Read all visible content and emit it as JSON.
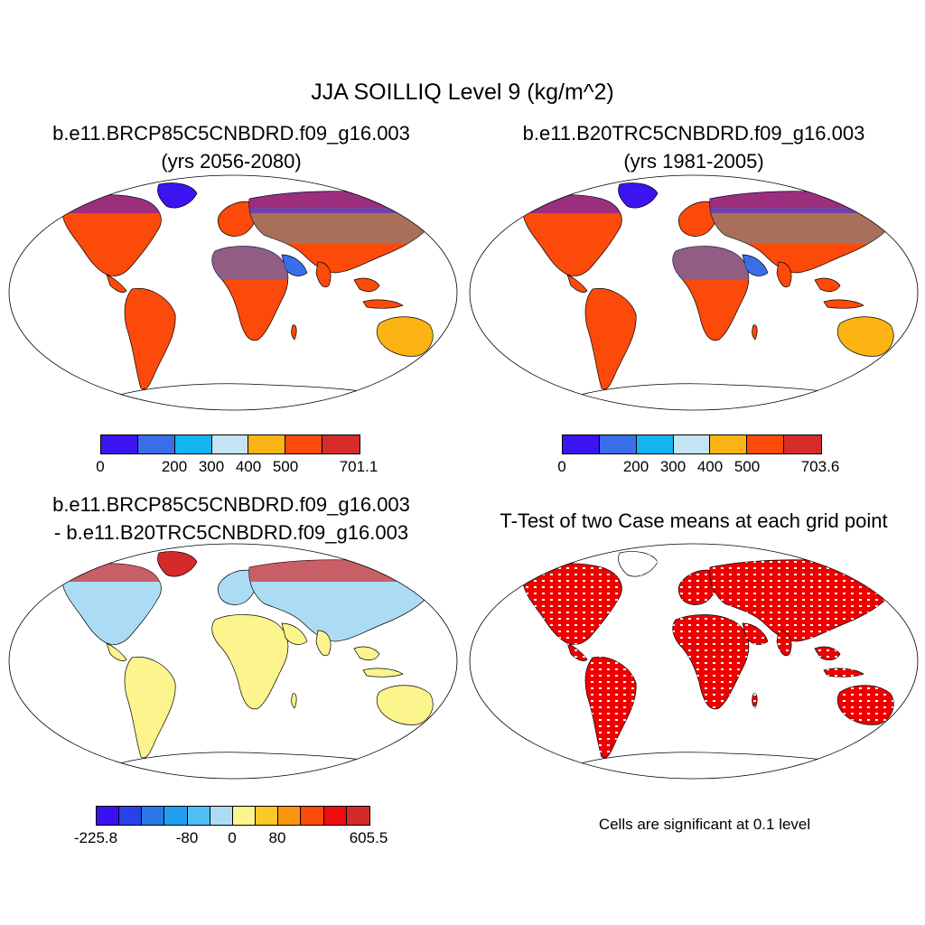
{
  "title": "JJA SOILLIQ Level 9 (kg/m^2)",
  "panels": [
    {
      "title_line1": "b.e11.BRCP85C5CNBDRD.f09_g16.003",
      "title_line2": "(yrs 2056-2080)",
      "colorbar": {
        "colors": [
          "#3b14f0",
          "#3a6ee8",
          "#14b4f0",
          "#c4e4f4",
          "#fbb414",
          "#fb4a0a",
          "#d72c2c"
        ],
        "ticks": [
          "0",
          "200",
          "300",
          "400",
          "500",
          "701.1"
        ]
      }
    },
    {
      "title_line1": "b.e11.B20TRC5CNBDRD.f09_g16.003",
      "title_line2": "(yrs 1981-2005)",
      "colorbar": {
        "colors": [
          "#3b14f0",
          "#3a6ee8",
          "#14b4f0",
          "#c4e4f4",
          "#fbb414",
          "#fb4a0a",
          "#d72c2c"
        ],
        "ticks": [
          "0",
          "200",
          "300",
          "400",
          "500",
          "703.6"
        ]
      }
    },
    {
      "title_line1": "b.e11.BRCP85C5CNBDRD.f09_g16.003",
      "title_line2": "- b.e11.B20TRC5CNBDRD.f09_g16.003",
      "colorbar": {
        "colors": [
          "#3b10f0",
          "#2a40e8",
          "#2a78e8",
          "#22a0f0",
          "#50c0f4",
          "#acdcf4",
          "#fcf48c",
          "#fcc828",
          "#fc9410",
          "#fc4a08",
          "#ee0c0c",
          "#d42a2a"
        ],
        "ticks": [
          "-225.8",
          "-80",
          "0",
          "80",
          "605.5"
        ]
      }
    },
    {
      "title_line1": "T-Test of two Case means at each grid point",
      "note": "Cells are significant at 0.1 level"
    }
  ]
}
